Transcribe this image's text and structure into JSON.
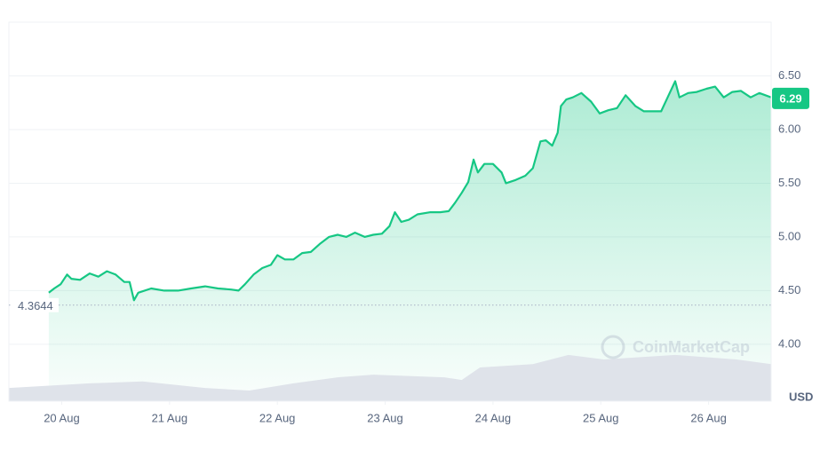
{
  "chart_data": {
    "type": "line",
    "color": "#16c784",
    "volume_color": "#dfe3ea",
    "grid": true,
    "xlim": [
      -0.49,
      6.58
    ],
    "ylim": [
      3.47,
      7.0
    ],
    "y2lim": [
      0,
      100
    ],
    "xticks": [
      {
        "value": 0,
        "label": "20 Aug"
      },
      {
        "value": 1,
        "label": "21 Aug"
      },
      {
        "value": 2,
        "label": "22 Aug"
      },
      {
        "value": 3,
        "label": "23 Aug"
      },
      {
        "value": 4,
        "label": "24 Aug"
      },
      {
        "value": 5,
        "label": "25 Aug"
      },
      {
        "value": 6,
        "label": "26 Aug"
      }
    ],
    "yticks": [
      {
        "value": 4,
        "label": "4.00"
      },
      {
        "value": 4.5,
        "label": "4.50"
      },
      {
        "value": 5,
        "label": "5.00"
      },
      {
        "value": 5.5,
        "label": "5.50"
      },
      {
        "value": 6,
        "label": "6.00"
      },
      {
        "value": 6.5,
        "label": "6.50"
      }
    ],
    "y_unit": "USD",
    "baseline": 4.3644,
    "last_price": 6.29,
    "watermark": "CoinMarketCap",
    "series": [
      {
        "name": "Price",
        "x": [
          -0.12,
          -0.07,
          -0.01,
          0.05,
          0.09,
          0.17,
          0.26,
          0.34,
          0.42,
          0.5,
          0.58,
          0.63,
          0.67,
          0.71,
          0.83,
          0.95,
          1.08,
          1.2,
          1.33,
          1.45,
          1.57,
          1.64,
          1.7,
          1.78,
          1.86,
          1.94,
          2.0,
          2.07,
          2.15,
          2.23,
          2.31,
          2.4,
          2.48,
          2.56,
          2.64,
          2.72,
          2.81,
          2.89,
          2.97,
          3.04,
          3.09,
          3.15,
          3.22,
          3.3,
          3.42,
          3.51,
          3.59,
          3.65,
          3.71,
          3.77,
          3.82,
          3.86,
          3.92,
          4.0,
          4.08,
          4.12,
          4.21,
          4.3,
          4.37,
          4.44,
          4.49,
          4.55,
          4.6,
          4.63,
          4.68,
          4.74,
          4.82,
          4.91,
          4.99,
          5.07,
          5.15,
          5.23,
          5.32,
          5.4,
          5.48,
          5.56,
          5.62,
          5.69,
          5.73,
          5.81,
          5.89,
          5.98,
          6.06,
          6.14,
          6.22,
          6.3,
          6.39,
          6.47,
          6.58
        ],
        "values": [
          4.48,
          4.52,
          4.56,
          4.65,
          4.61,
          4.6,
          4.66,
          4.63,
          4.68,
          4.65,
          4.58,
          4.58,
          4.41,
          4.48,
          4.52,
          4.5,
          4.5,
          4.52,
          4.54,
          4.52,
          4.51,
          4.5,
          4.56,
          4.65,
          4.71,
          4.74,
          4.83,
          4.79,
          4.79,
          4.85,
          4.86,
          4.94,
          5.0,
          5.02,
          5.0,
          5.04,
          5.0,
          5.02,
          5.03,
          5.1,
          5.23,
          5.14,
          5.16,
          5.21,
          5.23,
          5.23,
          5.24,
          5.32,
          5.41,
          5.51,
          5.72,
          5.6,
          5.68,
          5.68,
          5.6,
          5.5,
          5.53,
          5.57,
          5.64,
          5.89,
          5.9,
          5.85,
          5.97,
          6.22,
          6.28,
          6.3,
          6.34,
          6.26,
          6.15,
          6.18,
          6.2,
          6.32,
          6.22,
          6.17,
          6.17,
          6.17,
          6.3,
          6.45,
          6.3,
          6.34,
          6.35,
          6.38,
          6.4,
          6.3,
          6.35,
          6.36,
          6.3,
          6.34,
          6.3
        ]
      },
      {
        "name": "Volume",
        "axis": "y2",
        "x": [
          -0.49,
          0.26,
          0.75,
          1.33,
          1.74,
          2.15,
          2.56,
          2.89,
          3.55,
          3.71,
          3.88,
          4.37,
          4.7,
          5.03,
          5.69,
          6.26,
          6.58
        ],
        "values": [
          3.5,
          4.7,
          5.2,
          3.5,
          2.8,
          4.7,
          6.3,
          7.0,
          6.3,
          5.6,
          8.9,
          9.8,
          12.2,
          11.0,
          12.2,
          11.0,
          9.8
        ]
      }
    ]
  }
}
